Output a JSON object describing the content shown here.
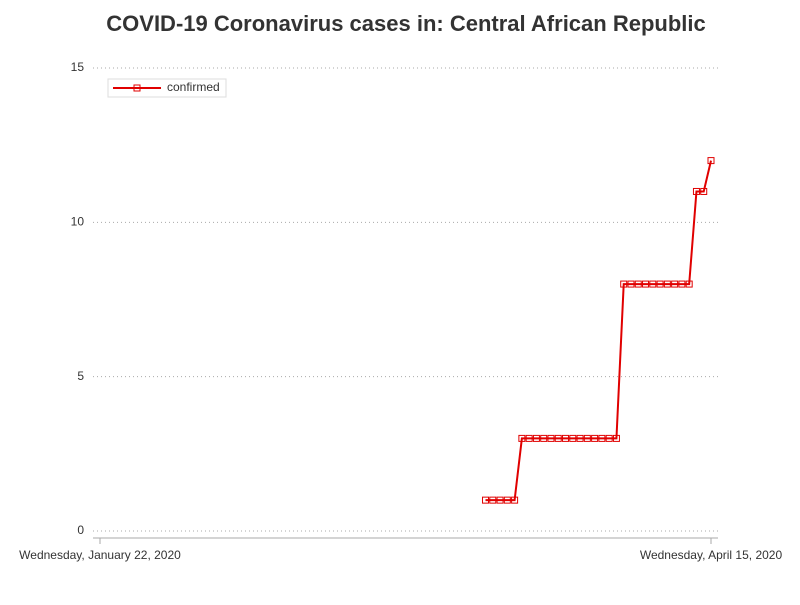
{
  "chart_data": {
    "type": "line",
    "title": "COVID-19 Coronavirus cases in: Central African Republic",
    "x": [
      "2020-03-15",
      "2020-03-16",
      "2020-03-17",
      "2020-03-18",
      "2020-03-19",
      "2020-03-20",
      "2020-03-21",
      "2020-03-22",
      "2020-03-23",
      "2020-03-24",
      "2020-03-25",
      "2020-03-26",
      "2020-03-27",
      "2020-03-28",
      "2020-03-29",
      "2020-03-30",
      "2020-03-31",
      "2020-04-01",
      "2020-04-02",
      "2020-04-03",
      "2020-04-04",
      "2020-04-05",
      "2020-04-06",
      "2020-04-07",
      "2020-04-08",
      "2020-04-09",
      "2020-04-10",
      "2020-04-11",
      "2020-04-12",
      "2020-04-13",
      "2020-04-14",
      "2020-04-15"
    ],
    "series": [
      {
        "name": "confirmed",
        "color": "#e00000",
        "values": [
          1,
          1,
          1,
          1,
          1,
          3,
          3,
          3,
          3,
          3,
          3,
          3,
          3,
          3,
          3,
          3,
          3,
          3,
          3,
          8,
          8,
          8,
          8,
          8,
          8,
          8,
          8,
          8,
          8,
          11,
          11,
          12
        ]
      }
    ],
    "xlim": [
      "2020-01-22",
      "2020-04-15"
    ],
    "xticks": [
      {
        "value": "2020-01-22",
        "label": "Wednesday, January 22, 2020"
      },
      {
        "value": "2020-04-15",
        "label": "Wednesday, April 15, 2020"
      }
    ],
    "ylim": [
      0,
      15
    ],
    "yticks": [
      0,
      5,
      10,
      15
    ],
    "grid": true,
    "legend": "top-left"
  }
}
